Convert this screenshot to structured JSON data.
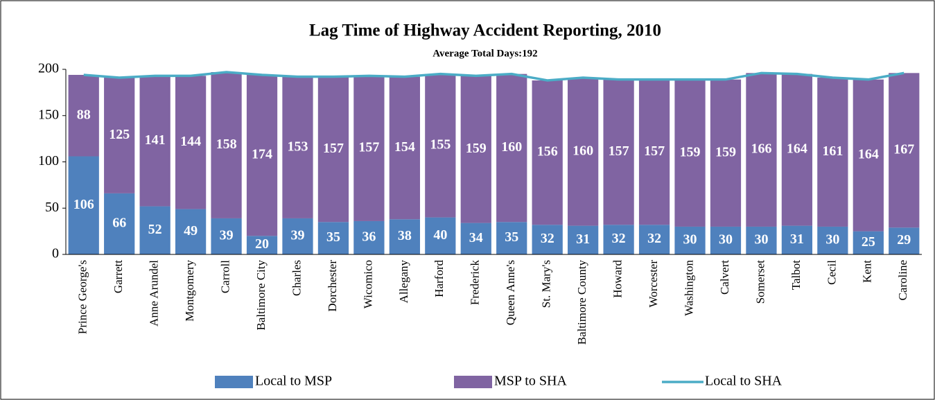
{
  "chart_data": {
    "type": "stacked_bar_line",
    "title": "Lag Time of Highway Accident Reporting, 2010",
    "subtitle": "Average Total Days:192",
    "categories": [
      "Prince George's",
      "Garrett",
      "Anne Arundel",
      "Montgomery",
      "Carroll",
      "Baltimore City",
      "Charles",
      "Dorchester",
      "Wicomico",
      "Allegany",
      "Harford",
      "Frederick",
      "Queen Anne's",
      "St. Mary's",
      "Baltimore County",
      "Howard",
      "Worcester",
      "Washington",
      "Calvert",
      "Somerset",
      "Talbot",
      "Cecil",
      "Kent",
      "Caroline"
    ],
    "series": [
      {
        "name": "Local to MSP",
        "color": "#4f81bd",
        "kind": "bar",
        "values": [
          106,
          66,
          52,
          49,
          39,
          20,
          39,
          35,
          36,
          38,
          40,
          34,
          35,
          32,
          31,
          32,
          32,
          30,
          30,
          30,
          31,
          30,
          25,
          29
        ]
      },
      {
        "name": "MSP to SHA",
        "color": "#8064a2",
        "kind": "bar",
        "values": [
          88,
          125,
          141,
          144,
          158,
          174,
          153,
          157,
          157,
          154,
          155,
          159,
          160,
          156,
          160,
          157,
          157,
          159,
          159,
          166,
          164,
          161,
          164,
          167
        ]
      },
      {
        "name": "Local to SHA",
        "color": "#4bacc6",
        "kind": "line",
        "values": [
          194,
          191,
          193,
          193,
          197,
          194,
          192,
          192,
          193,
          192,
          195,
          193,
          195,
          188,
          191,
          189,
          189,
          189,
          189,
          196,
          195,
          191,
          189,
          196
        ]
      }
    ],
    "ylim": [
      0,
      200
    ],
    "yticks": [
      0,
      50,
      100,
      150,
      200
    ],
    "legend": "bottom"
  }
}
